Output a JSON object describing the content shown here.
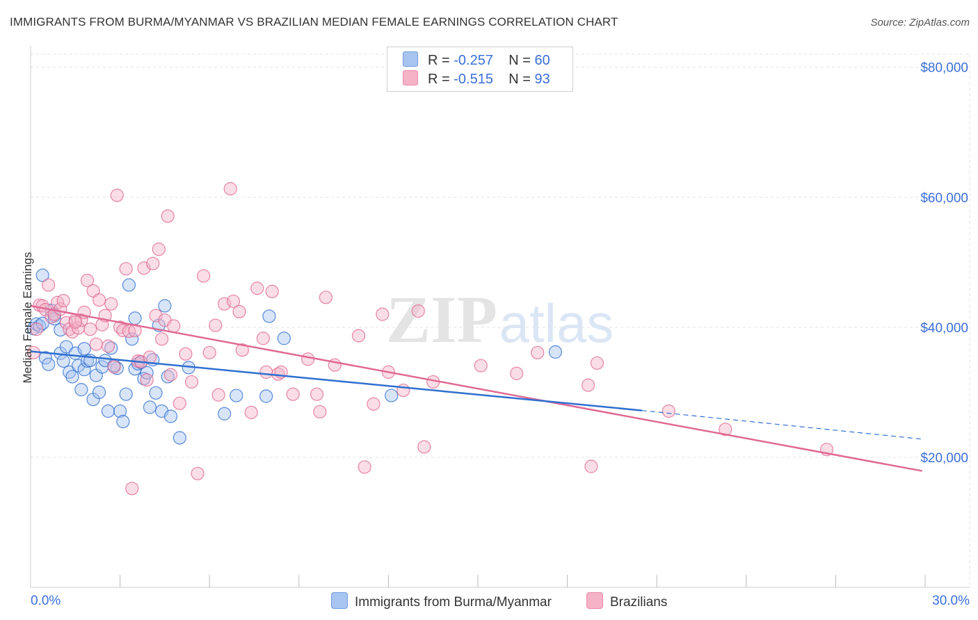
{
  "header": {
    "title": "IMMIGRANTS FROM BURMA/MYANMAR VS BRAZILIAN MEDIAN FEMALE EARNINGS CORRELATION CHART",
    "source": "Source: ZipAtlas.com"
  },
  "watermark": {
    "zip": "ZIP",
    "atlas": "atlas"
  },
  "legend": {
    "r_label": "R =",
    "n_label": "N =",
    "rows": [
      {
        "r": "-0.257",
        "n": "60",
        "color": "#a8c4f0"
      },
      {
        "r": "-0.515",
        "n": "93",
        "color": "#f5b3c8"
      }
    ]
  },
  "colors": {
    "blue_fill": "#a8c4f0",
    "blue_line": "#2f6fd0",
    "pink_fill": "#f5b3c8",
    "pink_line": "#e06994",
    "tick_text": "#3a6fd8",
    "grid": "#e2e2e2"
  },
  "chart_data": {
    "type": "scatter",
    "title": "IMMIGRANTS FROM BURMA/MYANMAR VS BRAZILIAN MEDIAN FEMALE EARNINGS CORRELATION CHART",
    "xlabel": "",
    "ylabel": "Median Female Earnings",
    "xlim": [
      0,
      30
    ],
    "ylim": [
      0,
      82000
    ],
    "x_tick_labels": [
      "0.0%",
      "30.0%"
    ],
    "y_ticks": [
      20000,
      40000,
      60000,
      80000
    ],
    "y_tick_labels": [
      "$20,000",
      "$40,000",
      "$60,000",
      "$80,000"
    ],
    "grid": true,
    "series": [
      {
        "name": "Immigrants from Burma/Myanmar",
        "r": -0.257,
        "n": 60,
        "trend": {
          "x0": 0,
          "y0": 36300,
          "x1": 20.5,
          "y1": 27200,
          "dashed_to_x": 29.9,
          "dashed_to_y": 22800
        },
        "points": [
          [
            0.1,
            39800
          ],
          [
            0.2,
            40500
          ],
          [
            0.3,
            40200
          ],
          [
            0.4,
            48000
          ],
          [
            0.5,
            35300
          ],
          [
            0.6,
            34300
          ],
          [
            0.7,
            42600
          ],
          [
            0.8,
            41800
          ],
          [
            1.0,
            36000
          ],
          [
            1.0,
            39600
          ],
          [
            1.2,
            37000
          ],
          [
            1.3,
            33100
          ],
          [
            1.4,
            32400
          ],
          [
            1.5,
            36000
          ],
          [
            1.6,
            34100
          ],
          [
            1.7,
            30400
          ],
          [
            1.8,
            33500
          ],
          [
            1.8,
            36700
          ],
          [
            1.9,
            34800
          ],
          [
            2.1,
            28900
          ],
          [
            2.2,
            32600
          ],
          [
            2.3,
            30000
          ],
          [
            2.4,
            33900
          ],
          [
            2.5,
            34900
          ],
          [
            2.6,
            27100
          ],
          [
            2.7,
            36800
          ],
          [
            2.9,
            33700
          ],
          [
            3.0,
            27100
          ],
          [
            3.1,
            25500
          ],
          [
            3.2,
            29700
          ],
          [
            3.3,
            46500
          ],
          [
            3.4,
            38200
          ],
          [
            3.5,
            41400
          ],
          [
            3.5,
            33600
          ],
          [
            3.6,
            34400
          ],
          [
            3.8,
            32100
          ],
          [
            3.9,
            33000
          ],
          [
            4.0,
            27700
          ],
          [
            4.2,
            29900
          ],
          [
            4.3,
            40300
          ],
          [
            4.4,
            27100
          ],
          [
            4.5,
            43300
          ],
          [
            4.6,
            32400
          ],
          [
            4.7,
            26300
          ],
          [
            5.0,
            23000
          ],
          [
            5.3,
            33800
          ],
          [
            6.5,
            26700
          ],
          [
            6.9,
            29500
          ],
          [
            7.9,
            29400
          ],
          [
            8.0,
            41700
          ],
          [
            8.5,
            38300
          ],
          [
            12.1,
            29500
          ],
          [
            17.6,
            36200
          ],
          [
            0.4,
            40600
          ],
          [
            0.8,
            41300
          ],
          [
            1.1,
            34800
          ],
          [
            2.0,
            34900
          ],
          [
            3.7,
            34600
          ],
          [
            2.8,
            34100
          ],
          [
            4.1,
            35000
          ]
        ]
      },
      {
        "name": "Brazilians",
        "r": -0.515,
        "n": 93,
        "trend": {
          "x0": 0,
          "y0": 43300,
          "x1": 29.9,
          "y1": 17900
        },
        "points": [
          [
            0.1,
            36100
          ],
          [
            0.2,
            39700
          ],
          [
            0.3,
            43400
          ],
          [
            0.4,
            43300
          ],
          [
            0.5,
            42700
          ],
          [
            0.6,
            46500
          ],
          [
            0.7,
            41600
          ],
          [
            0.8,
            42000
          ],
          [
            0.9,
            43800
          ],
          [
            1.0,
            42800
          ],
          [
            1.1,
            44100
          ],
          [
            1.2,
            40700
          ],
          [
            1.3,
            39700
          ],
          [
            1.4,
            39300
          ],
          [
            1.5,
            41100
          ],
          [
            1.6,
            39900
          ],
          [
            1.7,
            41100
          ],
          [
            1.8,
            42300
          ],
          [
            1.9,
            47200
          ],
          [
            2.0,
            39700
          ],
          [
            2.1,
            45600
          ],
          [
            2.2,
            37400
          ],
          [
            2.3,
            44200
          ],
          [
            2.4,
            40400
          ],
          [
            2.5,
            41800
          ],
          [
            2.6,
            37100
          ],
          [
            2.7,
            43600
          ],
          [
            2.8,
            33900
          ],
          [
            2.9,
            60300
          ],
          [
            3.0,
            40000
          ],
          [
            3.1,
            39500
          ],
          [
            3.2,
            49000
          ],
          [
            3.3,
            39400
          ],
          [
            3.4,
            15200
          ],
          [
            3.5,
            39500
          ],
          [
            3.6,
            34800
          ],
          [
            3.7,
            34700
          ],
          [
            3.8,
            49100
          ],
          [
            3.9,
            31900
          ],
          [
            4.0,
            35400
          ],
          [
            4.1,
            49800
          ],
          [
            4.2,
            41800
          ],
          [
            4.3,
            52000
          ],
          [
            4.4,
            38200
          ],
          [
            4.5,
            41100
          ],
          [
            4.6,
            57100
          ],
          [
            4.7,
            32700
          ],
          [
            4.8,
            40200
          ],
          [
            5.0,
            28300
          ],
          [
            5.2,
            35900
          ],
          [
            5.4,
            31600
          ],
          [
            5.6,
            17500
          ],
          [
            5.8,
            47900
          ],
          [
            6.0,
            36100
          ],
          [
            6.2,
            40300
          ],
          [
            6.3,
            29600
          ],
          [
            6.5,
            43600
          ],
          [
            6.7,
            61300
          ],
          [
            6.8,
            44000
          ],
          [
            7.0,
            42400
          ],
          [
            7.1,
            36500
          ],
          [
            7.4,
            26900
          ],
          [
            7.6,
            46000
          ],
          [
            7.8,
            38300
          ],
          [
            7.9,
            33100
          ],
          [
            8.1,
            45500
          ],
          [
            8.3,
            32800
          ],
          [
            8.4,
            33100
          ],
          [
            8.8,
            29700
          ],
          [
            9.3,
            35100
          ],
          [
            9.6,
            29700
          ],
          [
            9.7,
            27000
          ],
          [
            9.9,
            44600
          ],
          [
            10.2,
            34200
          ],
          [
            11.0,
            38700
          ],
          [
            11.2,
            18500
          ],
          [
            11.5,
            28200
          ],
          [
            11.8,
            42000
          ],
          [
            12.0,
            33100
          ],
          [
            12.5,
            30300
          ],
          [
            13.0,
            42500
          ],
          [
            13.2,
            21600
          ],
          [
            13.5,
            31600
          ],
          [
            15.1,
            34100
          ],
          [
            16.3,
            32900
          ],
          [
            17.0,
            36100
          ],
          [
            18.7,
            31100
          ],
          [
            18.8,
            18600
          ],
          [
            19.0,
            34500
          ],
          [
            21.4,
            27100
          ],
          [
            23.3,
            24300
          ],
          [
            26.7,
            21200
          ],
          [
            1.5,
            40800
          ]
        ]
      }
    ]
  },
  "bottom_legend": [
    {
      "label": "Immigrants from Burma/Myanmar",
      "color": "#a8c4f0"
    },
    {
      "label": "Brazilians",
      "color": "#f5b3c8"
    }
  ]
}
